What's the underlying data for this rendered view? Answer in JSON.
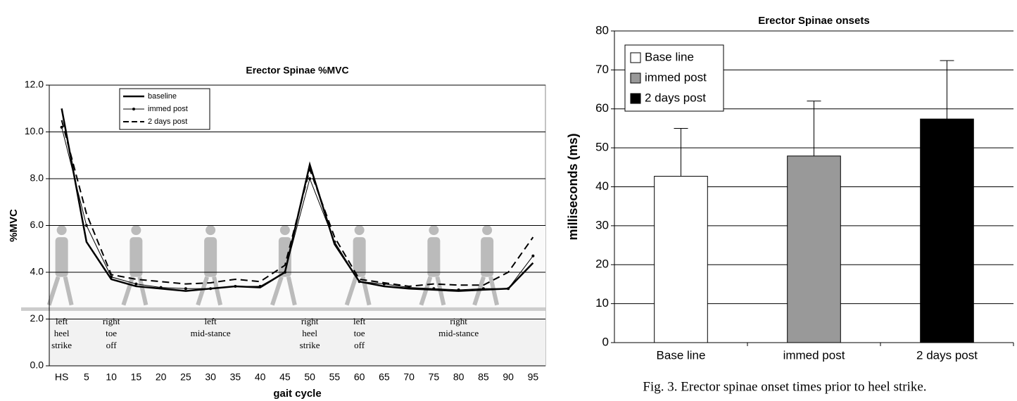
{
  "caption": "Fig. 3. Erector spinae onset times prior to heel strike.",
  "chart_data": [
    {
      "type": "line",
      "title": "Erector Spinae %MVC",
      "xlabel": "gait cycle",
      "ylabel": "%MVC",
      "categories": [
        "HS",
        "5",
        "10",
        "15",
        "20",
        "25",
        "30",
        "35",
        "40",
        "45",
        "50",
        "55",
        "60",
        "65",
        "70",
        "75",
        "80",
        "85",
        "90",
        "95"
      ],
      "series": [
        {
          "name": "baseline",
          "color": "#000000",
          "width": 2.5,
          "style": "solid",
          "marker": "none",
          "values": [
            11.0,
            5.3,
            3.7,
            3.4,
            3.3,
            3.2,
            3.3,
            3.4,
            3.35,
            4.0,
            8.6,
            5.2,
            3.6,
            3.4,
            3.3,
            3.25,
            3.2,
            3.25,
            3.3,
            4.4
          ]
        },
        {
          "name": "immed post",
          "color": "#000000",
          "width": 1,
          "style": "solid",
          "marker": "dot",
          "values": [
            10.2,
            6.0,
            3.8,
            3.5,
            3.35,
            3.3,
            3.3,
            3.4,
            3.4,
            4.0,
            8.0,
            5.3,
            3.6,
            3.5,
            3.35,
            3.3,
            3.25,
            3.3,
            3.3,
            4.7
          ]
        },
        {
          "name": "2 days post",
          "color": "#000000",
          "width": 2,
          "style": "dashed",
          "marker": "none",
          "values": [
            10.5,
            6.5,
            3.9,
            3.7,
            3.6,
            3.5,
            3.55,
            3.7,
            3.6,
            4.3,
            8.4,
            5.5,
            3.7,
            3.55,
            3.4,
            3.5,
            3.45,
            3.45,
            4.0,
            5.5
          ]
        }
      ],
      "ylim": [
        0,
        12
      ],
      "yticks": [
        {
          "value": 0,
          "label": "0.0"
        },
        {
          "value": 2,
          "label": "2.0"
        },
        {
          "value": 4,
          "label": "4.0"
        },
        {
          "value": 6,
          "label": "6.0"
        },
        {
          "value": 8,
          "label": "8.0"
        },
        {
          "value": 10,
          "label": "10.0"
        },
        {
          "value": 12,
          "label": "12.0"
        }
      ],
      "grid": true,
      "legend": "upper center",
      "annotations": [
        "left heel strike",
        "right toe off",
        "left mid-stance",
        "right heel strike",
        "left toe off",
        "right mid-stance"
      ]
    },
    {
      "type": "bar",
      "title": "Erector Spinae onsets",
      "ylabel": "milliseconds (ms)",
      "categories": [
        "Base line",
        "immed post",
        "2 days post"
      ],
      "values": [
        42.7,
        47.9,
        57.4
      ],
      "errors": [
        12.3,
        14.1,
        15.0
      ],
      "colors": [
        "#ffffff",
        "#999999",
        "#000000"
      ],
      "ylim": [
        0,
        80
      ],
      "yticks": [
        0,
        10,
        20,
        30,
        40,
        50,
        60,
        70,
        80
      ],
      "grid": true,
      "legend": "upper left"
    }
  ]
}
